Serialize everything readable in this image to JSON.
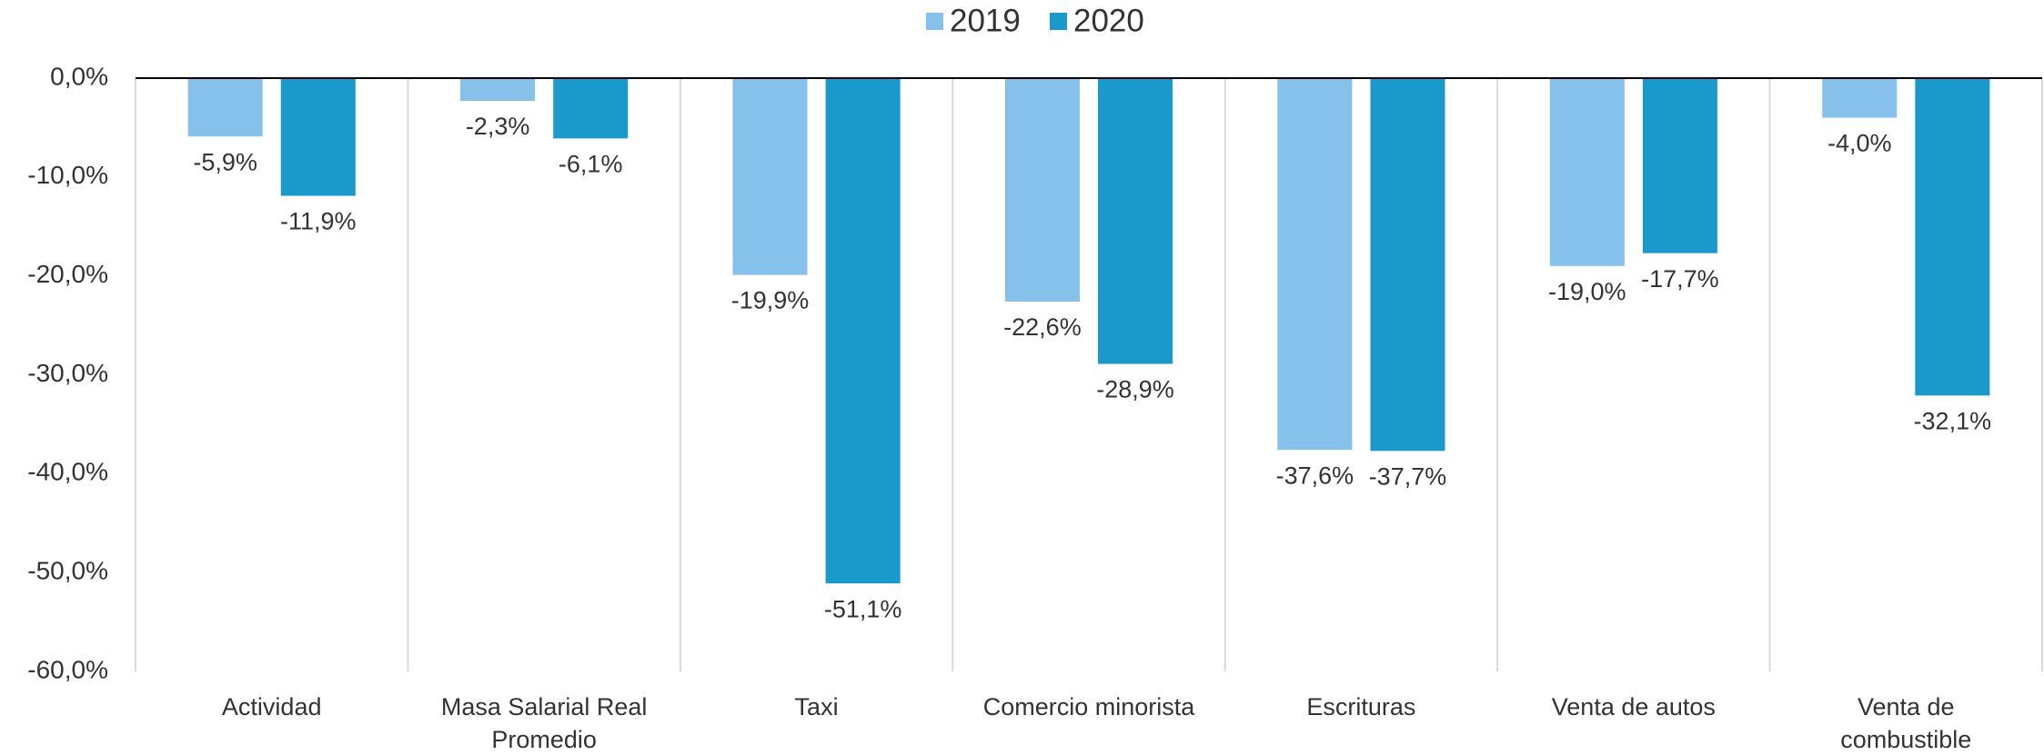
{
  "chart_data": {
    "type": "bar",
    "categories": [
      "Actividad",
      "Masa Salarial Real Promedio",
      "Taxi",
      "Comercio minorista",
      "Escrituras",
      "Venta de autos",
      "Venta de combustible"
    ],
    "series": [
      {
        "name": "2019",
        "color": "#85c1ea",
        "values": [
          -5.9,
          -2.3,
          -19.9,
          -22.6,
          -37.6,
          -19.0,
          -4.0
        ],
        "value_labels": [
          "-5,9%",
          "-2,3%",
          "-19,9%",
          "-22,6%",
          "-37,6%",
          "-19,0%",
          "-4,0%"
        ]
      },
      {
        "name": "2020",
        "color": "#1a9acb",
        "values": [
          -11.9,
          -6.1,
          -51.1,
          -28.9,
          -37.7,
          -17.7,
          -32.1
        ],
        "value_labels": [
          "-11,9%",
          "-6,1%",
          "-51,1%",
          "-28,9%",
          "-37,7%",
          "-17,7%",
          "-32,1%"
        ]
      }
    ],
    "ylim": [
      -60,
      0
    ],
    "yticks": [
      {
        "value": 0,
        "label": "0,0%"
      },
      {
        "value": -10,
        "label": "-10,0%"
      },
      {
        "value": -20,
        "label": "-20,0%"
      },
      {
        "value": -30,
        "label": "-30,0%"
      },
      {
        "value": -40,
        "label": "-40,0%"
      },
      {
        "value": -50,
        "label": "-50,0%"
      },
      {
        "value": -60,
        "label": "-60,0%"
      }
    ],
    "legend": "top"
  }
}
